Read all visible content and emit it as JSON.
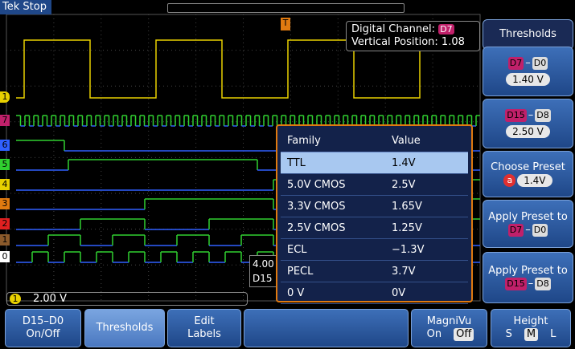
{
  "header": {
    "brand": "Tek",
    "status": "Stop"
  },
  "trigger_marker": "T",
  "readout": {
    "channel_label": "Digital Channel:",
    "channel": "D7",
    "position": "Vertical Position: 1.08"
  },
  "analog_marker": "1",
  "channel_markers": [
    "7",
    "6",
    "5",
    "4",
    "3",
    "2",
    "1",
    "0"
  ],
  "partial": {
    "time": "4.00",
    "source": "D15"
  },
  "scale": {
    "channel": "1",
    "value": "2.00 V"
  },
  "preset_table": {
    "columns": [
      "Family",
      "Value"
    ],
    "rows": [
      [
        "TTL",
        "1.4V"
      ],
      [
        "5.0V CMOS",
        "2.5V"
      ],
      [
        "3.3V CMOS",
        "1.65V"
      ],
      [
        "2.5V CMOS",
        "1.25V"
      ],
      [
        "ECL",
        "−1.3V"
      ],
      [
        "PECL",
        "3.7V"
      ],
      [
        "0 V",
        "0V"
      ]
    ]
  },
  "side_menu": {
    "title": "Thresholds",
    "low": {
      "from": "D7",
      "sep": "–",
      "to": "D0",
      "value": "1.40 V"
    },
    "high": {
      "from": "D15",
      "sep": "–",
      "to": "D8",
      "value": "2.50 V"
    },
    "choose": {
      "label": "Choose Preset",
      "knob": "a",
      "value": "1.4V"
    },
    "apply_low": {
      "label": "Apply Preset to",
      "from": "D7",
      "sep": "–",
      "to": "D0"
    },
    "apply_high": {
      "label": "Apply Preset to",
      "from": "D15",
      "sep": "–",
      "to": "D8"
    }
  },
  "bottom_menu": {
    "onoff": {
      "line1": "D15–D0",
      "line2": "On/Off"
    },
    "thresholds": "Thresholds",
    "edit": {
      "line1": "Edit",
      "line2": "Labels"
    },
    "magnivu": {
      "title": "MagniVu",
      "options": [
        "On",
        "Off"
      ]
    },
    "height": {
      "title": "Height",
      "options": [
        "S",
        "M",
        "L"
      ]
    }
  }
}
